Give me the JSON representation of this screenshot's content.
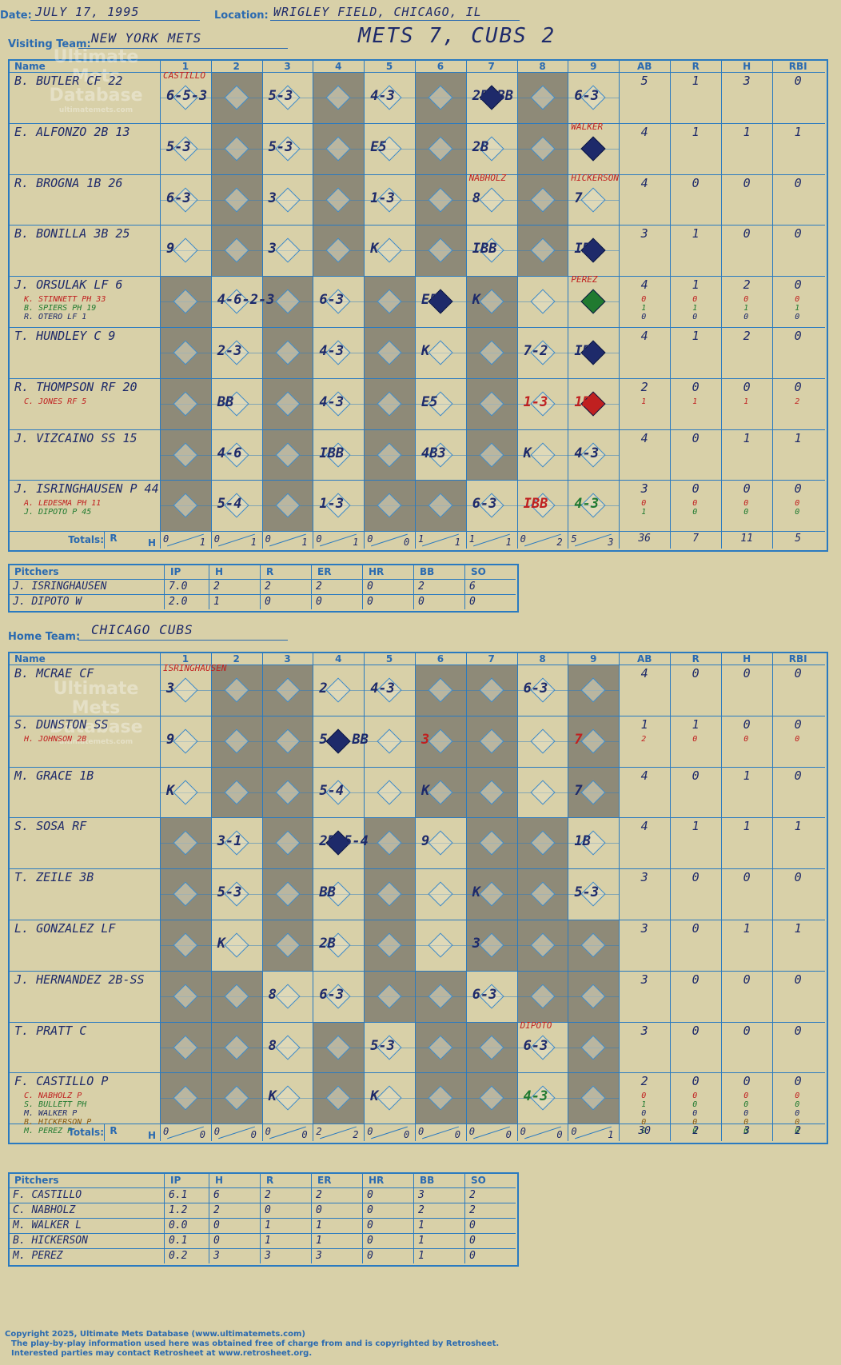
{
  "header": {
    "date_label": "Date:",
    "date": "JULY 17, 1995",
    "location_label": "Location:",
    "location": "WRIGLEY FIELD, CHICAGO, IL",
    "visiting_label": "Visiting Team:",
    "visiting_team": "NEW YORK METS",
    "result": "METS 7, CUBS 2",
    "home_label": "Home Team:",
    "home_team": "CHICAGO CUBS"
  },
  "columns": {
    "name": "Name",
    "innings": [
      "1",
      "2",
      "3",
      "4",
      "5",
      "6",
      "7",
      "8",
      "9"
    ],
    "stats": [
      "AB",
      "R",
      "H",
      "RBI"
    ],
    "totals": "Totals:",
    "r": "R",
    "h": "H"
  },
  "watermark": {
    "line1": "Ultimate",
    "line2": "Mets",
    "line3": "Database",
    "url": "ultimatemets.com"
  },
  "visitors": {
    "players": [
      {
        "name": "B. BUTLER CF",
        "num": "22",
        "ab": "5",
        "r": "1",
        "h": "3",
        "rbi": "0"
      },
      {
        "name": "E. ALFONZO 2B",
        "num": "13",
        "ab": "4",
        "r": "1",
        "h": "1",
        "rbi": "1"
      },
      {
        "name": "R. BROGNA 1B",
        "num": "26",
        "ab": "4",
        "r": "0",
        "h": "0",
        "rbi": "0"
      },
      {
        "name": "B. BONILLA 3B",
        "num": "25",
        "ab": "3",
        "r": "1",
        "h": "0",
        "rbi": "0"
      },
      {
        "name": "J. ORSULAK LF",
        "num": "6",
        "ab": "4",
        "r": "1",
        "h": "2",
        "rbi": "0"
      },
      {
        "name": "T. HUNDLEY C",
        "num": "9",
        "ab": "4",
        "r": "1",
        "h": "2",
        "rbi": "0"
      },
      {
        "name": "R. THOMPSON RF",
        "num": "20",
        "ab": "2",
        "r": "0",
        "h": "0",
        "rbi": "0"
      },
      {
        "name": "J. VIZCAINO SS",
        "num": "15",
        "ab": "4",
        "r": "0",
        "h": "1",
        "rbi": "1"
      },
      {
        "name": "J. ISRINGHAUSEN P",
        "num": "44",
        "ab": "3",
        "r": "0",
        "h": "0",
        "rbi": "0"
      }
    ],
    "subs": [
      {
        "row": 4,
        "lines": [
          {
            "text": "K. STINNETT PH 33",
            "color": "#c02020",
            "ab": "0",
            "r": "0",
            "h": "0",
            "rbi": "0"
          },
          {
            "text": "B. SPIERS PH 19",
            "color": "#207a30",
            "ab": "1",
            "r": "1",
            "h": "1",
            "rbi": "1"
          },
          {
            "text": "R. OTERO LF 1",
            "color": "#1e2a6a",
            "ab": "0",
            "r": "0",
            "h": "0",
            "rbi": "0"
          }
        ]
      },
      {
        "row": 6,
        "lines": [
          {
            "text": "C. JONES RF 5",
            "color": "#c02020",
            "ab": "1",
            "r": "1",
            "h": "1",
            "rbi": "2"
          }
        ]
      },
      {
        "row": 8,
        "lines": [
          {
            "text": "A. LEDESMA PH 11",
            "color": "#c02020",
            "ab": "0",
            "r": "0",
            "h": "0",
            "rbi": "0"
          },
          {
            "text": "J. DIPOTO P 45",
            "color": "#207a30",
            "ab": "1",
            "r": "0",
            "h": "0",
            "rbi": "0"
          }
        ]
      }
    ],
    "plays": [
      {
        "r": 0,
        "c": 0,
        "t": "6-5-3",
        "color": "#1e2a6a"
      },
      {
        "r": 0,
        "c": 0,
        "t": "CASTILLO",
        "color": "#c02020",
        "note": true
      },
      {
        "r": 0,
        "c": 2,
        "t": "5-3",
        "color": "#1e2a6a"
      },
      {
        "r": 0,
        "c": 4,
        "t": "4-3",
        "color": "#1e2a6a"
      },
      {
        "r": 0,
        "c": 6,
        "t": "2B BB",
        "color": "#1e2a6a"
      },
      {
        "r": 0,
        "c": 8,
        "t": "6-3",
        "color": "#1e2a6a"
      },
      {
        "r": 1,
        "c": 0,
        "t": "5-3",
        "color": "#1e2a6a"
      },
      {
        "r": 1,
        "c": 2,
        "t": "5-3",
        "color": "#1e2a6a"
      },
      {
        "r": 1,
        "c": 4,
        "t": "E5",
        "color": "#1e2a6a"
      },
      {
        "r": 1,
        "c": 6,
        "t": "2B",
        "color": "#1e2a6a"
      },
      {
        "r": 1,
        "c": 8,
        "t": "WALKER",
        "color": "#c02020",
        "note": true
      },
      {
        "r": 2,
        "c": 0,
        "t": "6-3",
        "color": "#1e2a6a"
      },
      {
        "r": 2,
        "c": 2,
        "t": "3",
        "color": "#1e2a6a"
      },
      {
        "r": 2,
        "c": 4,
        "t": "1-3",
        "color": "#1e2a6a"
      },
      {
        "r": 2,
        "c": 6,
        "t": "8",
        "color": "#1e2a6a"
      },
      {
        "r": 2,
        "c": 6,
        "t": "NABHOLZ",
        "color": "#c02020",
        "note": true
      },
      {
        "r": 2,
        "c": 8,
        "t": "HICKERSON",
        "color": "#c02020",
        "note": true
      },
      {
        "r": 2,
        "c": 8,
        "t": "7",
        "color": "#1e2a6a"
      },
      {
        "r": 3,
        "c": 0,
        "t": "9",
        "color": "#1e2a6a"
      },
      {
        "r": 3,
        "c": 2,
        "t": "3",
        "color": "#1e2a6a"
      },
      {
        "r": 3,
        "c": 4,
        "t": "K",
        "color": "#1e2a6a"
      },
      {
        "r": 3,
        "c": 6,
        "t": "IBB",
        "color": "#1e2a6a"
      },
      {
        "r": 3,
        "c": 8,
        "t": "IBB",
        "color": "#1e2a6a"
      },
      {
        "r": 4,
        "c": 1,
        "t": "4-6-2-3",
        "color": "#1e2a6a"
      },
      {
        "r": 4,
        "c": 3,
        "t": "6-3",
        "color": "#1e2a6a"
      },
      {
        "r": 4,
        "c": 5,
        "t": "E5",
        "color": "#1e2a6a"
      },
      {
        "r": 4,
        "c": 6,
        "t": "K",
        "color": "#1e2a6a"
      },
      {
        "r": 4,
        "c": 8,
        "t": "PEREZ",
        "color": "#c02020",
        "note": true
      },
      {
        "r": 5,
        "c": 1,
        "t": "2-3",
        "color": "#1e2a6a"
      },
      {
        "r": 5,
        "c": 3,
        "t": "4-3",
        "color": "#1e2a6a"
      },
      {
        "r": 5,
        "c": 5,
        "t": "K",
        "color": "#1e2a6a"
      },
      {
        "r": 5,
        "c": 7,
        "t": "7-2",
        "color": "#1e2a6a"
      },
      {
        "r": 5,
        "c": 8,
        "t": "IBB",
        "color": "#1e2a6a"
      },
      {
        "r": 6,
        "c": 1,
        "t": "BB",
        "color": "#1e2a6a"
      },
      {
        "r": 6,
        "c": 3,
        "t": "4-3",
        "color": "#1e2a6a"
      },
      {
        "r": 6,
        "c": 5,
        "t": "E5",
        "color": "#1e2a6a"
      },
      {
        "r": 6,
        "c": 7,
        "t": "1-3",
        "color": "#c02020"
      },
      {
        "r": 6,
        "c": 8,
        "t": "1B",
        "color": "#c02020"
      },
      {
        "r": 7,
        "c": 1,
        "t": "4-6",
        "color": "#1e2a6a"
      },
      {
        "r": 7,
        "c": 3,
        "t": "IBB",
        "color": "#1e2a6a"
      },
      {
        "r": 7,
        "c": 5,
        "t": "4B3",
        "color": "#1e2a6a"
      },
      {
        "r": 7,
        "c": 7,
        "t": "K",
        "color": "#1e2a6a"
      },
      {
        "r": 7,
        "c": 8,
        "t": "4-3",
        "color": "#1e2a6a"
      },
      {
        "r": 8,
        "c": 1,
        "t": "5-4",
        "color": "#1e2a6a"
      },
      {
        "r": 8,
        "c": 3,
        "t": "1-3",
        "color": "#1e2a6a"
      },
      {
        "r": 8,
        "c": 6,
        "t": "6-3",
        "color": "#1e2a6a"
      },
      {
        "r": 8,
        "c": 7,
        "t": "IBB",
        "color": "#c02020"
      },
      {
        "r": 8,
        "c": 8,
        "t": "4-3",
        "color": "#207a30"
      }
    ],
    "runs": [
      {
        "r": 0,
        "c": 6,
        "color": "#1e2a6a"
      },
      {
        "r": 1,
        "c": 8,
        "color": "#1e2a6a"
      },
      {
        "r": 3,
        "c": 8,
        "color": "#1e2a6a"
      },
      {
        "r": 4,
        "c": 5,
        "color": "#1e2a6a"
      },
      {
        "r": 4,
        "c": 8,
        "color": "#207a30"
      },
      {
        "r": 5,
        "c": 8,
        "color": "#1e2a6a"
      },
      {
        "r": 6,
        "c": 8,
        "color": "#c02020"
      }
    ],
    "totals": [
      {
        "r": "0",
        "h": "1"
      },
      {
        "r": "0",
        "h": "1"
      },
      {
        "r": "0",
        "h": "1"
      },
      {
        "r": "0",
        "h": "1"
      },
      {
        "r": "0",
        "h": "0"
      },
      {
        "r": "1",
        "h": "1"
      },
      {
        "r": "1",
        "h": "1"
      },
      {
        "r": "0",
        "h": "2"
      },
      {
        "r": "5",
        "h": "3"
      }
    ],
    "total_stats": {
      "ab": "36",
      "r": "7",
      "h": "11",
      "rbi": "5"
    }
  },
  "visitor_pitchers": {
    "headers": [
      "Pitchers",
      "IP",
      "H",
      "R",
      "ER",
      "HR",
      "BB",
      "SO"
    ],
    "rows": [
      [
        "J. ISRINGHAUSEN",
        "7.0",
        "2",
        "2",
        "2",
        "0",
        "2",
        "6"
      ],
      [
        "J. DIPOTO  W",
        "2.0",
        "1",
        "0",
        "0",
        "0",
        "0",
        "0"
      ]
    ]
  },
  "home": {
    "players": [
      {
        "name": "B. MCRAE CF",
        "num": "",
        "ab": "4",
        "r": "0",
        "h": "0",
        "rbi": "0"
      },
      {
        "name": "S. DUNSTON SS",
        "num": "",
        "ab": "1",
        "r": "1",
        "h": "0",
        "rbi": "0"
      },
      {
        "name": "M. GRACE 1B",
        "num": "",
        "ab": "4",
        "r": "0",
        "h": "1",
        "rbi": "0"
      },
      {
        "name": "S. SOSA RF",
        "num": "",
        "ab": "4",
        "r": "1",
        "h": "1",
        "rbi": "1"
      },
      {
        "name": "T. ZEILE 3B",
        "num": "",
        "ab": "3",
        "r": "0",
        "h": "0",
        "rbi": "0"
      },
      {
        "name": "L. GONZALEZ LF",
        "num": "",
        "ab": "3",
        "r": "0",
        "h": "1",
        "rbi": "1"
      },
      {
        "name": "J. HERNANDEZ 2B-SS",
        "num": "",
        "ab": "3",
        "r": "0",
        "h": "0",
        "rbi": "0"
      },
      {
        "name": "T. PRATT C",
        "num": "",
        "ab": "3",
        "r": "0",
        "h": "0",
        "rbi": "0"
      },
      {
        "name": "F. CASTILLO P",
        "num": "",
        "ab": "2",
        "r": "0",
        "h": "0",
        "rbi": "0"
      }
    ],
    "subs": [
      {
        "row": 1,
        "lines": [
          {
            "text": "H. JOHNSON 2B",
            "color": "#c02020",
            "ab": "2",
            "r": "0",
            "h": "0",
            "rbi": "0"
          }
        ]
      },
      {
        "row": 8,
        "lines": [
          {
            "text": "C. NABHOLZ P",
            "color": "#c02020",
            "ab": "0",
            "r": "0",
            "h": "0",
            "rbi": "0"
          },
          {
            "text": "S. BULLETT PH",
            "color": "#207a30",
            "ab": "1",
            "r": "0",
            "h": "0",
            "rbi": "0"
          },
          {
            "text": "M. WALKER P",
            "color": "#1e2a6a",
            "ab": "0",
            "r": "0",
            "h": "0",
            "rbi": "0"
          },
          {
            "text": "B. HICKERSON P",
            "color": "#8a5a10",
            "ab": "0",
            "r": "0",
            "h": "0",
            "rbi": "0"
          },
          {
            "text": "M. PEREZ P",
            "color": "#207a30",
            "ab": "0",
            "r": "0",
            "h": "0",
            "rbi": "0"
          }
        ]
      }
    ],
    "plays": [
      {
        "r": 0,
        "c": 0,
        "t": "3",
        "color": "#1e2a6a"
      },
      {
        "r": 0,
        "c": 0,
        "t": "ISRINGHAUSEN",
        "color": "#c02020",
        "note": true
      },
      {
        "r": 0,
        "c": 3,
        "t": "2",
        "color": "#1e2a6a"
      },
      {
        "r": 0,
        "c": 4,
        "t": "4-3",
        "color": "#1e2a6a"
      },
      {
        "r": 0,
        "c": 7,
        "t": "6-3",
        "color": "#1e2a6a"
      },
      {
        "r": 1,
        "c": 0,
        "t": "9",
        "color": "#1e2a6a"
      },
      {
        "r": 1,
        "c": 3,
        "t": "5-4 BB",
        "color": "#1e2a6a"
      },
      {
        "r": 1,
        "c": 5,
        "t": "3",
        "color": "#c02020"
      },
      {
        "r": 1,
        "c": 8,
        "t": "7",
        "color": "#c02020"
      },
      {
        "r": 2,
        "c": 0,
        "t": "K",
        "color": "#1e2a6a"
      },
      {
        "r": 2,
        "c": 3,
        "t": "5-4",
        "color": "#1e2a6a"
      },
      {
        "r": 2,
        "c": 5,
        "t": "K",
        "color": "#1e2a6a"
      },
      {
        "r": 2,
        "c": 8,
        "t": "7",
        "color": "#1e2a6a"
      },
      {
        "r": 3,
        "c": 1,
        "t": "3-1",
        "color": "#1e2a6a"
      },
      {
        "r": 3,
        "c": 3,
        "t": "2B 5-4",
        "color": "#1e2a6a"
      },
      {
        "r": 3,
        "c": 5,
        "t": "9",
        "color": "#1e2a6a"
      },
      {
        "r": 3,
        "c": 8,
        "t": "1B",
        "color": "#1e2a6a"
      },
      {
        "r": 4,
        "c": 1,
        "t": "5-3",
        "color": "#1e2a6a"
      },
      {
        "r": 4,
        "c": 3,
        "t": "BB",
        "color": "#1e2a6a"
      },
      {
        "r": 4,
        "c": 6,
        "t": "K",
        "color": "#1e2a6a"
      },
      {
        "r": 4,
        "c": 8,
        "t": "5-3",
        "color": "#1e2a6a"
      },
      {
        "r": 5,
        "c": 1,
        "t": "K",
        "color": "#1e2a6a"
      },
      {
        "r": 5,
        "c": 3,
        "t": "2B",
        "color": "#1e2a6a"
      },
      {
        "r": 5,
        "c": 6,
        "t": "3",
        "color": "#1e2a6a"
      },
      {
        "r": 6,
        "c": 2,
        "t": "8",
        "color": "#1e2a6a"
      },
      {
        "r": 6,
        "c": 3,
        "t": "6-3",
        "color": "#1e2a6a"
      },
      {
        "r": 6,
        "c": 6,
        "t": "6-3",
        "color": "#1e2a6a"
      },
      {
        "r": 7,
        "c": 2,
        "t": "8",
        "color": "#1e2a6a"
      },
      {
        "r": 7,
        "c": 4,
        "t": "5-3",
        "color": "#1e2a6a"
      },
      {
        "r": 7,
        "c": 7,
        "t": "6-3",
        "color": "#1e2a6a"
      },
      {
        "r": 7,
        "c": 7,
        "t": "DIPOTO",
        "color": "#c02020",
        "note": true
      },
      {
        "r": 8,
        "c": 2,
        "t": "K",
        "color": "#1e2a6a"
      },
      {
        "r": 8,
        "c": 4,
        "t": "K",
        "color": "#1e2a6a"
      },
      {
        "r": 8,
        "c": 7,
        "t": "4-3",
        "color": "#207a30"
      }
    ],
    "runs": [
      {
        "r": 1,
        "c": 3,
        "color": "#1e2a6a"
      },
      {
        "r": 3,
        "c": 3,
        "color": "#1e2a6a"
      }
    ],
    "totals": [
      {
        "r": "0",
        "h": "0"
      },
      {
        "r": "0",
        "h": "0"
      },
      {
        "r": "0",
        "h": "0"
      },
      {
        "r": "2",
        "h": "2"
      },
      {
        "r": "0",
        "h": "0"
      },
      {
        "r": "0",
        "h": "0"
      },
      {
        "r": "0",
        "h": "0"
      },
      {
        "r": "0",
        "h": "0"
      },
      {
        "r": "0",
        "h": "1"
      }
    ],
    "total_stats": {
      "ab": "30",
      "r": "2",
      "h": "3",
      "rbi": "2"
    }
  },
  "home_pitchers": {
    "headers": [
      "Pitchers",
      "IP",
      "H",
      "R",
      "ER",
      "HR",
      "BB",
      "SO"
    ],
    "rows": [
      [
        "F. CASTILLO",
        "6.1",
        "6",
        "2",
        "2",
        "0",
        "3",
        "2"
      ],
      [
        "C. NABHOLZ",
        "1.2",
        "2",
        "0",
        "0",
        "0",
        "2",
        "2"
      ],
      [
        "M. WALKER  L",
        "0.0",
        "0",
        "1",
        "1",
        "0",
        "1",
        "0"
      ],
      [
        "B. HICKERSON",
        "0.1",
        "0",
        "1",
        "1",
        "0",
        "1",
        "0"
      ],
      [
        "M. PEREZ",
        "0.2",
        "3",
        "3",
        "3",
        "0",
        "1",
        "0"
      ]
    ]
  },
  "footer": {
    "line1": "Copyright 2025, Ultimate Mets Database (www.ultimatemets.com)",
    "line2": "The play-by-play information used here was obtained free of charge from and is copyrighted by Retrosheet.",
    "line3": "Interested parties may contact Retrosheet at www.retrosheet.org."
  }
}
